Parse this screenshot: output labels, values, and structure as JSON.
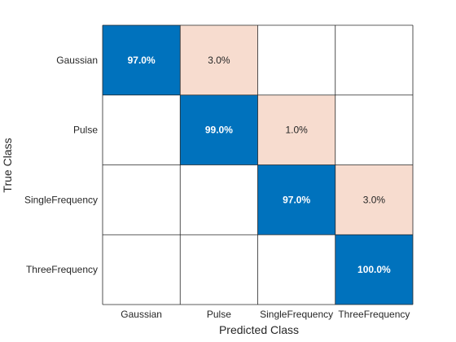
{
  "chart_data": {
    "type": "heatmap",
    "title": "",
    "xlabel": "Predicted Class",
    "ylabel": "True Class",
    "classes": [
      "Gaussian",
      "Pulse",
      "SingleFrequency",
      "ThreeFrequency"
    ],
    "values": [
      [
        97.0,
        3.0,
        null,
        null
      ],
      [
        null,
        99.0,
        1.0,
        null
      ],
      [
        null,
        null,
        97.0,
        3.0
      ],
      [
        null,
        null,
        null,
        100.0
      ]
    ],
    "value_format": "percent_1dp",
    "colors": {
      "correct": "#0072BD",
      "incorrect": "#F7DCCF",
      "empty": "#FFFFFF",
      "grid": "#262626",
      "correct_text": "#FFFFFF",
      "incorrect_text": "#262626"
    }
  }
}
